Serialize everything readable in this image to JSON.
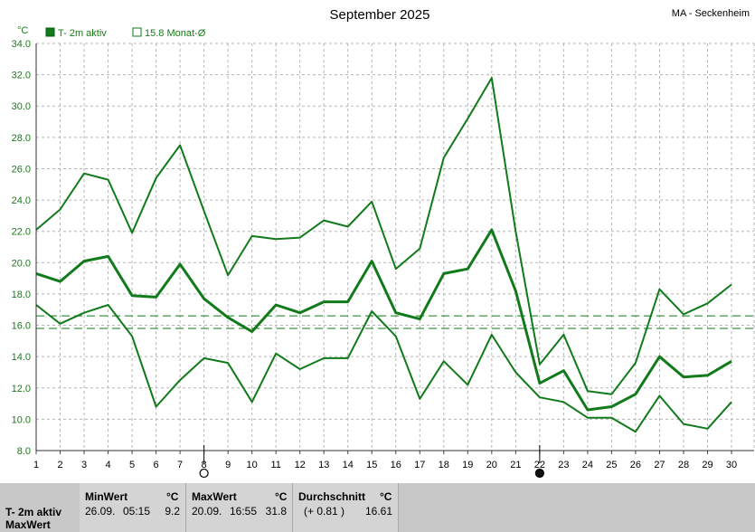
{
  "header": {
    "title": "September 2025",
    "station": "MA - Seckenheim"
  },
  "legend": {
    "series_label": "T- 2m aktiv",
    "avg_label": "15.8 Monat-Ø"
  },
  "colors": {
    "line": "#117a1a",
    "grid": "#b5b5b5",
    "axis_text": "#1a7a1a",
    "panel": "#d4d4d4"
  },
  "chart_data": {
    "type": "line",
    "title": "September 2025",
    "ylabel": "°C",
    "ylim": [
      8,
      34
    ],
    "yticks": [
      "8.0",
      "10.0",
      "12.0",
      "14.0",
      "16.0",
      "18.0",
      "20.0",
      "22.0",
      "24.0",
      "26.0",
      "28.0",
      "30.0",
      "32.0",
      "34.0"
    ],
    "x": [
      1,
      2,
      3,
      4,
      5,
      6,
      7,
      8,
      9,
      10,
      11,
      12,
      13,
      14,
      15,
      16,
      17,
      18,
      19,
      20,
      21,
      22,
      23,
      24,
      25,
      26,
      27,
      28,
      29,
      30
    ],
    "series": [
      {
        "role": "max",
        "values": [
          22.1,
          23.4,
          25.7,
          25.3,
          21.9,
          25.4,
          27.5,
          23.3,
          19.2,
          21.7,
          21.5,
          21.6,
          22.7,
          22.3,
          23.9,
          19.6,
          20.9,
          26.7,
          29.2,
          31.8,
          22.0,
          13.5,
          15.4,
          11.8,
          11.6,
          13.6,
          18.3,
          16.7,
          17.4,
          18.6
        ]
      },
      {
        "name": "T- 2m aktiv",
        "role": "mean",
        "values": [
          19.3,
          18.8,
          20.1,
          20.4,
          17.9,
          17.8,
          19.9,
          17.7,
          16.5,
          15.6,
          17.3,
          16.8,
          17.5,
          17.5,
          20.1,
          16.8,
          16.4,
          19.3,
          19.6,
          22.1,
          18.2,
          12.3,
          13.1,
          10.6,
          10.8,
          11.6,
          14.0,
          12.7,
          12.8,
          13.7
        ]
      },
      {
        "role": "min",
        "values": [
          17.3,
          16.1,
          16.8,
          17.3,
          15.3,
          10.8,
          12.5,
          13.9,
          13.6,
          11.1,
          14.2,
          13.2,
          13.9,
          13.9,
          16.9,
          15.3,
          11.3,
          13.7,
          12.2,
          15.4,
          13.0,
          11.4,
          11.1,
          10.1,
          10.1,
          9.2,
          11.5,
          9.7,
          9.4,
          11.1
        ]
      }
    ],
    "reference_lines": [
      {
        "label": "15.8 Monat-Ø",
        "value": 15.8
      },
      {
        "value": 16.6
      }
    ],
    "markers": [
      {
        "day": 8,
        "symbol": "empty-circle"
      },
      {
        "day": 22,
        "symbol": "filled-circle"
      }
    ],
    "grid": true
  },
  "stats": {
    "row1": "T- 2m aktiv",
    "row2": "MaxWert",
    "min": {
      "title": "MinWert",
      "unit": "°C",
      "date": "26.09.",
      "time": "05:15",
      "value": "9.2"
    },
    "max": {
      "title": "MaxWert",
      "unit": "°C",
      "date": "20.09.",
      "time": "16:55",
      "value": "31.8"
    },
    "avg": {
      "title": "Durchschnitt",
      "unit": "°C",
      "delta": "(+ 0.81 )",
      "value": "16.61"
    }
  }
}
